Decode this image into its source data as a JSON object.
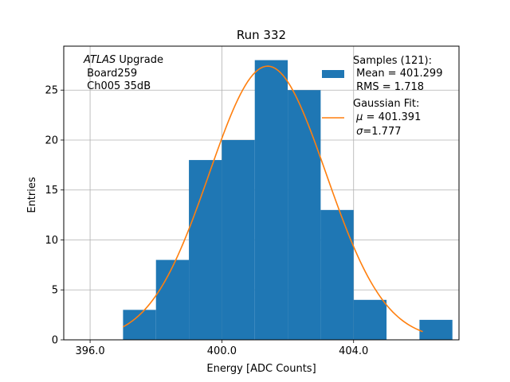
{
  "chart_data": {
    "type": "histogram",
    "title": "Run 332",
    "xlabel": "Energy [ADC Counts]",
    "ylabel": "Entries",
    "xlim": [
      395.2,
      407.2
    ],
    "ylim": [
      0,
      29.4
    ],
    "grid": true,
    "x_ticks": [
      396.0,
      400.0,
      404.0
    ],
    "x_tick_labels": [
      "396.0",
      "400.0",
      "404.0"
    ],
    "y_ticks": [
      0,
      5,
      10,
      15,
      20,
      25
    ],
    "y_tick_labels": [
      "0",
      "5",
      "10",
      "15",
      "20",
      "25"
    ],
    "bins": [
      {
        "x0": 397.0,
        "x1": 398.0,
        "count": 3
      },
      {
        "x0": 398.0,
        "x1": 399.0,
        "count": 8
      },
      {
        "x0": 399.0,
        "x1": 400.0,
        "count": 18
      },
      {
        "x0": 400.0,
        "x1": 401.0,
        "count": 20
      },
      {
        "x0": 401.0,
        "x1": 402.0,
        "count": 28
      },
      {
        "x0": 402.0,
        "x1": 403.0,
        "count": 25
      },
      {
        "x0": 403.0,
        "x1": 404.0,
        "count": 13
      },
      {
        "x0": 404.0,
        "x1": 405.0,
        "count": 4
      },
      {
        "x0": 405.0,
        "x1": 406.0,
        "count": 0
      },
      {
        "x0": 406.0,
        "x1": 407.0,
        "count": 2
      }
    ],
    "fit": {
      "name": "Gaussian Fit",
      "mu": 401.391,
      "sigma": 1.777,
      "amplitude": 27.4,
      "x_range": [
        397.0,
        406.1
      ]
    },
    "colors": {
      "histogram": "#1f77b4",
      "fit": "#ff7f0e",
      "grid": "#b0b0b0"
    },
    "annotation": {
      "italic_word": "ATLAS",
      "line1_rest": " Upgrade",
      "line2": " Board259",
      "line3": " Ch005 35dB"
    },
    "legend": {
      "samples_line1": "Samples (121):",
      "samples_line2": " Mean = 401.299",
      "samples_line3": " RMS = 1.718",
      "fit_line1": "Gaussian Fit:",
      "fit_mu_symbol": "μ",
      "fit_mu_rest": " = 401.391",
      "fit_sigma_symbol": "σ",
      "fit_sigma_rest": "=1.777",
      "placement": "top-right"
    }
  }
}
